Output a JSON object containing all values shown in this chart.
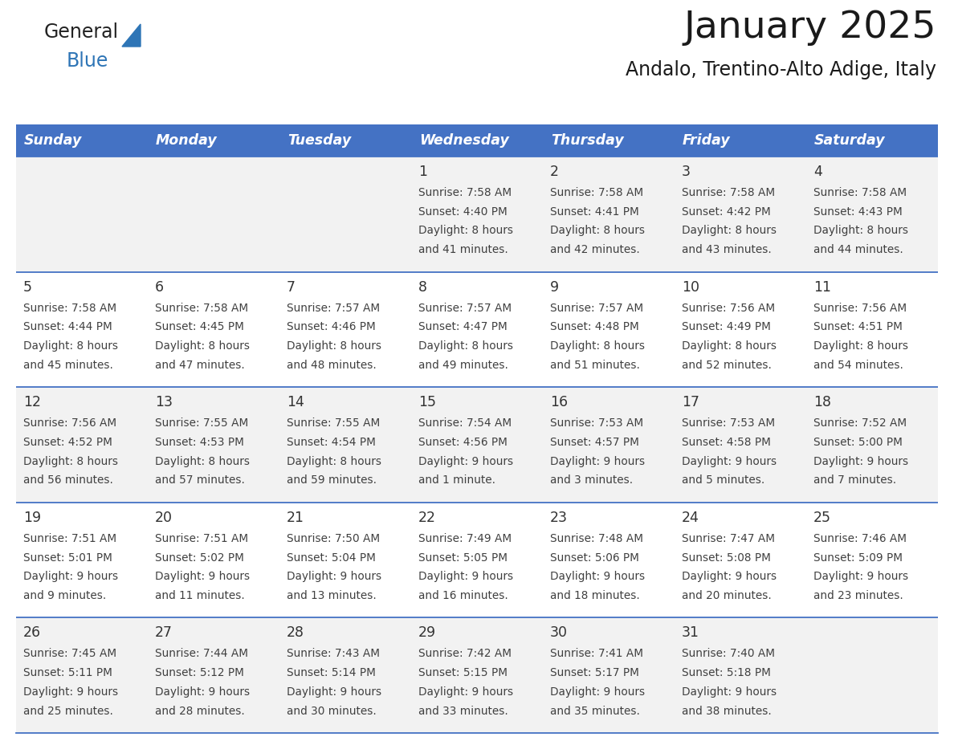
{
  "title": "January 2025",
  "subtitle": "Andalo, Trentino-Alto Adige, Italy",
  "header_bg_color": "#4472C4",
  "header_text_color": "#FFFFFF",
  "day_names": [
    "Sunday",
    "Monday",
    "Tuesday",
    "Wednesday",
    "Thursday",
    "Friday",
    "Saturday"
  ],
  "row_colors": [
    "#F2F2F2",
    "#FFFFFF"
  ],
  "border_color": "#4472C4",
  "text_color": "#404040",
  "day_num_color": "#333333",
  "logo_general_color": "#222222",
  "logo_blue_color": "#2E75B6",
  "cells": [
    [
      {
        "day": "",
        "sunrise": "",
        "sunset": "",
        "daylight": ""
      },
      {
        "day": "",
        "sunrise": "",
        "sunset": "",
        "daylight": ""
      },
      {
        "day": "",
        "sunrise": "",
        "sunset": "",
        "daylight": ""
      },
      {
        "day": "1",
        "sunrise": "7:58 AM",
        "sunset": "4:40 PM",
        "daylight": "8 hours and 41 minutes."
      },
      {
        "day": "2",
        "sunrise": "7:58 AM",
        "sunset": "4:41 PM",
        "daylight": "8 hours and 42 minutes."
      },
      {
        "day": "3",
        "sunrise": "7:58 AM",
        "sunset": "4:42 PM",
        "daylight": "8 hours and 43 minutes."
      },
      {
        "day": "4",
        "sunrise": "7:58 AM",
        "sunset": "4:43 PM",
        "daylight": "8 hours and 44 minutes."
      }
    ],
    [
      {
        "day": "5",
        "sunrise": "7:58 AM",
        "sunset": "4:44 PM",
        "daylight": "8 hours and 45 minutes."
      },
      {
        "day": "6",
        "sunrise": "7:58 AM",
        "sunset": "4:45 PM",
        "daylight": "8 hours and 47 minutes."
      },
      {
        "day": "7",
        "sunrise": "7:57 AM",
        "sunset": "4:46 PM",
        "daylight": "8 hours and 48 minutes."
      },
      {
        "day": "8",
        "sunrise": "7:57 AM",
        "sunset": "4:47 PM",
        "daylight": "8 hours and 49 minutes."
      },
      {
        "day": "9",
        "sunrise": "7:57 AM",
        "sunset": "4:48 PM",
        "daylight": "8 hours and 51 minutes."
      },
      {
        "day": "10",
        "sunrise": "7:56 AM",
        "sunset": "4:49 PM",
        "daylight": "8 hours and 52 minutes."
      },
      {
        "day": "11",
        "sunrise": "7:56 AM",
        "sunset": "4:51 PM",
        "daylight": "8 hours and 54 minutes."
      }
    ],
    [
      {
        "day": "12",
        "sunrise": "7:56 AM",
        "sunset": "4:52 PM",
        "daylight": "8 hours and 56 minutes."
      },
      {
        "day": "13",
        "sunrise": "7:55 AM",
        "sunset": "4:53 PM",
        "daylight": "8 hours and 57 minutes."
      },
      {
        "day": "14",
        "sunrise": "7:55 AM",
        "sunset": "4:54 PM",
        "daylight": "8 hours and 59 minutes."
      },
      {
        "day": "15",
        "sunrise": "7:54 AM",
        "sunset": "4:56 PM",
        "daylight": "9 hours and 1 minute."
      },
      {
        "day": "16",
        "sunrise": "7:53 AM",
        "sunset": "4:57 PM",
        "daylight": "9 hours and 3 minutes."
      },
      {
        "day": "17",
        "sunrise": "7:53 AM",
        "sunset": "4:58 PM",
        "daylight": "9 hours and 5 minutes."
      },
      {
        "day": "18",
        "sunrise": "7:52 AM",
        "sunset": "5:00 PM",
        "daylight": "9 hours and 7 minutes."
      }
    ],
    [
      {
        "day": "19",
        "sunrise": "7:51 AM",
        "sunset": "5:01 PM",
        "daylight": "9 hours and 9 minutes."
      },
      {
        "day": "20",
        "sunrise": "7:51 AM",
        "sunset": "5:02 PM",
        "daylight": "9 hours and 11 minutes."
      },
      {
        "day": "21",
        "sunrise": "7:50 AM",
        "sunset": "5:04 PM",
        "daylight": "9 hours and 13 minutes."
      },
      {
        "day": "22",
        "sunrise": "7:49 AM",
        "sunset": "5:05 PM",
        "daylight": "9 hours and 16 minutes."
      },
      {
        "day": "23",
        "sunrise": "7:48 AM",
        "sunset": "5:06 PM",
        "daylight": "9 hours and 18 minutes."
      },
      {
        "day": "24",
        "sunrise": "7:47 AM",
        "sunset": "5:08 PM",
        "daylight": "9 hours and 20 minutes."
      },
      {
        "day": "25",
        "sunrise": "7:46 AM",
        "sunset": "5:09 PM",
        "daylight": "9 hours and 23 minutes."
      }
    ],
    [
      {
        "day": "26",
        "sunrise": "7:45 AM",
        "sunset": "5:11 PM",
        "daylight": "9 hours and 25 minutes."
      },
      {
        "day": "27",
        "sunrise": "7:44 AM",
        "sunset": "5:12 PM",
        "daylight": "9 hours and 28 minutes."
      },
      {
        "day": "28",
        "sunrise": "7:43 AM",
        "sunset": "5:14 PM",
        "daylight": "9 hours and 30 minutes."
      },
      {
        "day": "29",
        "sunrise": "7:42 AM",
        "sunset": "5:15 PM",
        "daylight": "9 hours and 33 minutes."
      },
      {
        "day": "30",
        "sunrise": "7:41 AM",
        "sunset": "5:17 PM",
        "daylight": "9 hours and 35 minutes."
      },
      {
        "day": "31",
        "sunrise": "7:40 AM",
        "sunset": "5:18 PM",
        "daylight": "9 hours and 38 minutes."
      },
      {
        "day": "",
        "sunrise": "",
        "sunset": "",
        "daylight": ""
      }
    ]
  ]
}
